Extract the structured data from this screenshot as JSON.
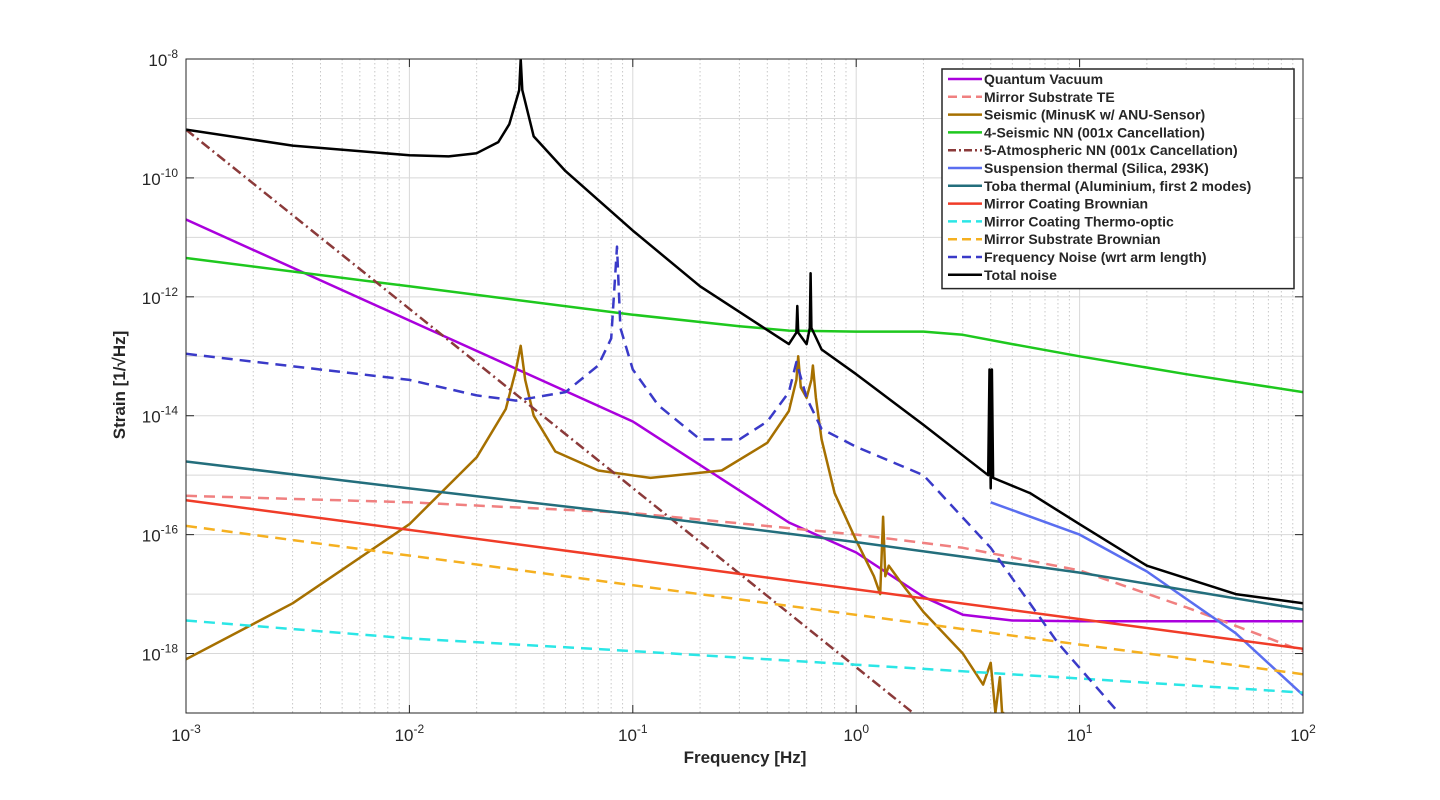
{
  "chart_data": {
    "type": "line",
    "xlabel": "Frequency [Hz]",
    "ylabel": "Strain [1/√Hz]",
    "xscale": "log",
    "yscale": "log",
    "xlim": [
      0.001,
      100
    ],
    "ylim": [
      1e-19,
      1e-08
    ],
    "grid": true,
    "legend_position": "top-right",
    "x_ticks": [
      {
        "value": 0.001,
        "base": "10",
        "exp": "-3"
      },
      {
        "value": 0.01,
        "base": "10",
        "exp": "-2"
      },
      {
        "value": 0.1,
        "base": "10",
        "exp": "-1"
      },
      {
        "value": 1,
        "base": "10",
        "exp": "0"
      },
      {
        "value": 10,
        "base": "10",
        "exp": "1"
      },
      {
        "value": 100,
        "base": "10",
        "exp": "2"
      }
    ],
    "y_ticks": [
      {
        "value": 1e-18,
        "base": "10",
        "exp": "-18"
      },
      {
        "value": 1e-16,
        "base": "10",
        "exp": "-16"
      },
      {
        "value": 1e-14,
        "base": "10",
        "exp": "-14"
      },
      {
        "value": 1e-12,
        "base": "10",
        "exp": "-12"
      },
      {
        "value": 1e-10,
        "base": "10",
        "exp": "-10"
      },
      {
        "value": 1e-08,
        "base": "10",
        "exp": "-8"
      }
    ],
    "series": [
      {
        "name": "Quantum Vacuum",
        "color": "#aa00dd",
        "style": "solid",
        "x": [
          0.001,
          0.01,
          0.1,
          0.5,
          1,
          2,
          3,
          5,
          10,
          100
        ],
        "y": [
          2e-11,
          4e-13,
          8e-15,
          1.6e-16,
          5e-17,
          9e-18,
          4.5e-18,
          3.6e-18,
          3.5e-18,
          3.5e-18
        ]
      },
      {
        "name": "Mirror Substrate TE",
        "color": "#f08080",
        "style": "dashed",
        "x": [
          0.001,
          0.01,
          0.1,
          1,
          3,
          10,
          30,
          100
        ],
        "y": [
          4.5e-16,
          3.5e-16,
          2.3e-16,
          1e-16,
          6e-17,
          2.5e-17,
          6e-18,
          1.1e-18
        ]
      },
      {
        "name": "Seismic (MinusK w/ ANU-Sensor)",
        "color": "#a67000",
        "style": "solid",
        "x": [
          0.001,
          0.003,
          0.01,
          0.02,
          0.027,
          0.03,
          0.0315,
          0.033,
          0.036,
          0.045,
          0.07,
          0.12,
          0.25,
          0.4,
          0.5,
          0.54,
          0.55,
          0.565,
          0.6,
          0.63,
          0.64,
          0.66,
          0.7,
          0.8,
          1.0,
          1.2,
          1.28,
          1.32,
          1.35,
          1.4,
          1.6,
          2,
          3,
          3.7,
          4.0,
          4.2,
          4.4,
          4.5,
          4.6
        ],
        "y": [
          8e-19,
          7e-18,
          1.5e-16,
          2e-15,
          1.3e-14,
          6e-14,
          1.5e-13,
          4e-14,
          1e-14,
          2.5e-15,
          1.2e-15,
          9e-16,
          1.2e-15,
          3.5e-15,
          1.2e-14,
          4e-14,
          1e-13,
          3e-14,
          2e-14,
          4e-14,
          7e-14,
          2e-14,
          4e-15,
          5e-16,
          8e-17,
          2e-17,
          1e-17,
          2e-16,
          2e-17,
          3e-17,
          1.5e-17,
          5e-18,
          1e-18,
          3e-19,
          7e-19,
          1e-19,
          4e-19,
          1e-19,
          1e-19
        ]
      },
      {
        "name": "4-Seismic NN (001x Cancellation)",
        "color": "#1ec81e",
        "style": "solid",
        "x": [
          0.001,
          0.01,
          0.1,
          0.3,
          0.5,
          1,
          2,
          3,
          5,
          10,
          30,
          100
        ],
        "y": [
          4.5e-12,
          1.5e-12,
          5e-13,
          3.2e-13,
          2.7e-13,
          2.6e-13,
          2.6e-13,
          2.3e-13,
          1.6e-13,
          1e-13,
          5e-14,
          2.5e-14
        ]
      },
      {
        "name": "5-Atmospheric NN (001x Cancellation)",
        "color": "#8b3a3a",
        "style": "dashdot",
        "x": [
          0.001,
          1.8
        ],
        "y": [
          6.5e-10,
          1e-19
        ]
      },
      {
        "name": "Suspension thermal (Silica, 293K)",
        "color": "#5a6ef0",
        "style": "solid",
        "x": [
          4,
          10,
          20,
          50,
          100
        ],
        "y": [
          3.5e-16,
          1e-16,
          2.4e-17,
          2.2e-18,
          2e-19
        ]
      },
      {
        "name": "Toba thermal (Aluminium, first 2 modes)",
        "color": "#236e7c",
        "style": "solid",
        "x": [
          0.001,
          0.01,
          0.1,
          1,
          10,
          100
        ],
        "y": [
          1.7e-15,
          6e-16,
          2.2e-16,
          7.5e-17,
          2.3e-17,
          5.5e-18
        ]
      },
      {
        "name": "Mirror Coating Brownian",
        "color": "#f03c28",
        "style": "solid",
        "x": [
          0.001,
          100
        ],
        "y": [
          3.8e-16,
          1.2e-18
        ]
      },
      {
        "name": "Mirror Coating Thermo-optic",
        "color": "#2be6e6",
        "style": "dashed",
        "x": [
          0.001,
          0.01,
          0.1,
          1,
          10,
          100
        ],
        "y": [
          3.6e-18,
          1.8e-18,
          1.1e-18,
          6.5e-19,
          3.8e-19,
          2.2e-19
        ]
      },
      {
        "name": "Mirror Substrate Brownian",
        "color": "#f5b020",
        "style": "dashed",
        "x": [
          0.001,
          100
        ],
        "y": [
          1.4e-16,
          4.5e-19
        ]
      },
      {
        "name": "Frequency Noise (wrt arm length)",
        "color": "#3a3ac8",
        "style": "dashed",
        "x": [
          0.001,
          0.01,
          0.02,
          0.03,
          0.05,
          0.07,
          0.08,
          0.085,
          0.088,
          0.1,
          0.13,
          0.2,
          0.3,
          0.4,
          0.5,
          0.54,
          0.56,
          0.6,
          0.7,
          1,
          2,
          4,
          8,
          15
        ],
        "y": [
          1.1e-13,
          4e-14,
          2.2e-14,
          1.8e-14,
          2.5e-14,
          7e-14,
          2e-13,
          7e-12,
          3e-13,
          6e-14,
          1.5e-14,
          4e-15,
          4e-15,
          8e-15,
          2.5e-14,
          8e-14,
          5e-14,
          2e-14,
          6e-15,
          3e-15,
          1e-15,
          6e-17,
          1.5e-18,
          1e-19
        ]
      },
      {
        "name": "Total noise",
        "color": "#000000",
        "style": "solid",
        "x": [
          0.001,
          0.003,
          0.01,
          0.015,
          0.02,
          0.025,
          0.028,
          0.031,
          0.0315,
          0.032,
          0.036,
          0.05,
          0.1,
          0.2,
          0.5,
          0.54,
          0.545,
          0.55,
          0.6,
          0.62,
          0.625,
          0.63,
          0.7,
          1,
          2,
          3.9,
          3.95,
          4.0,
          4.05,
          4.1,
          6,
          10,
          20,
          50,
          100
        ],
        "y": [
          6.5e-10,
          3.5e-10,
          2.4e-10,
          2.3e-10,
          2.6e-10,
          4e-10,
          8e-10,
          3e-09,
          1e-08,
          3e-09,
          5e-10,
          1.3e-10,
          1.3e-11,
          1.5e-12,
          1.6e-13,
          2.5e-13,
          7e-13,
          2.5e-13,
          1.6e-13,
          3e-13,
          2.5e-12,
          3e-13,
          1.3e-13,
          5e-14,
          7e-15,
          1e-15,
          6e-14,
          6e-16,
          6e-14,
          9e-16,
          5e-16,
          1.5e-16,
          3e-17,
          1e-17,
          7e-18
        ]
      }
    ]
  }
}
